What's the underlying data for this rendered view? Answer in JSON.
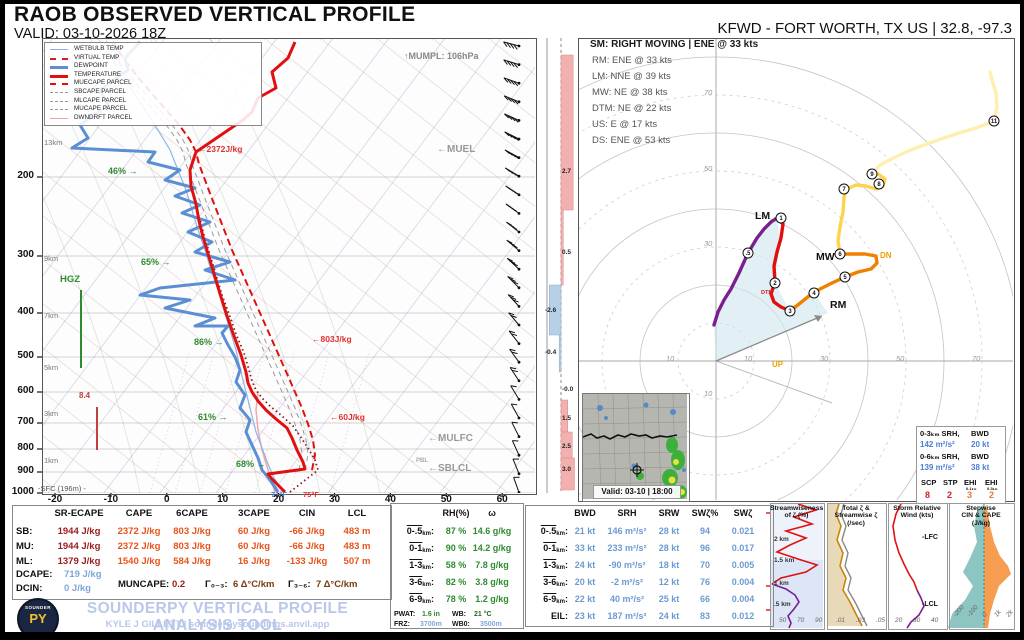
{
  "header": {
    "title": "RAOB OBSERVED VERTICAL PROFILE",
    "valid": "VALID: 03-10-2026 18Z",
    "station": "KFWD - FORT WORTH, TX US | 32.8, -97.3"
  },
  "skewt": {
    "legend": [
      "WETBULB TEMP",
      "VIRTUAL TEMP",
      "DEWPOINT",
      "TEMPERATURE",
      "MUECAPE PARCEL",
      "SBCAPE PARCEL",
      "MLCAPE PARCEL",
      "MUCAPE PARCEL",
      "DWNDRFT PARCEL"
    ],
    "pressure_ticks": [
      "200",
      "300",
      "400",
      "500",
      "600",
      "700",
      "800",
      "900",
      "1000"
    ],
    "temp_ticks": [
      "-20",
      "-10",
      "0",
      "10",
      "20",
      "30",
      "40",
      "50",
      "60"
    ],
    "height_labels": [
      "13km",
      "9km",
      "7km",
      "5km",
      "3km",
      "1km"
    ],
    "sfc_label": "-SFC (196m) -",
    "annotations": {
      "mumpl": "↑MUMPL: 106hPa",
      "muel": "←MUEL",
      "mulfc": "←MULFC",
      "sblcl": "←SBLCL",
      "pbl": "←PBL",
      "hgz": "HGZ",
      "hail_size": "8.4",
      "cape_total": "←2372J/kg",
      "cape_6km": "←803J/kg",
      "cape_3km": "←60J/kg",
      "sfc_temp": "75°F",
      "sfc_dewpoint": "71°F",
      "rh_labels": [
        "46% →",
        "65% →",
        "86% →",
        "61% →",
        "68% →"
      ]
    }
  },
  "chart_data": {
    "type": "skewt-hodograph-sounding",
    "advection_c_per_hr": [
      "2.7",
      "0.5",
      "-2.6",
      "-0.4",
      "-0.0",
      "1.5",
      "2.5",
      "3.0"
    ],
    "storm_motion": {
      "headline": "SM: RIGHT MOVING | ENE @ 33 kts",
      "vectors": [
        "RM: ENE @ 33 kts",
        "LM: NNE @ 39 kts",
        "MW: NE @ 38 kts",
        "DTM: NE @ 22 kts",
        "US: E @ 17 kts",
        "DS: ENE @ 53 kts"
      ]
    },
    "hodograph_labels": {
      "lm": "LM",
      "mw": "MW",
      "rm": "RM",
      "dtm": "DTM",
      "up": "UP",
      "dn": "DN"
    },
    "hodograph_km_markers": [
      ".5",
      "1",
      "2",
      "3",
      "4",
      "5",
      "6",
      "7",
      "8",
      "9",
      "11"
    ],
    "hodograph_ring_labels": [
      "10",
      "30",
      "50",
      "70"
    ],
    "srh_box": {
      "row1_label": "0-3ₖₘ SRH,",
      "row1_label2": "BWD",
      "row1_val": "142 m²/s²",
      "row1_val2": "20 kt",
      "row2_label": "0-6ₖₘ SRH,",
      "row2_label2": "BWD",
      "row2_val": "139 m²/s²",
      "row2_val2": "38 kt",
      "idx_headers": [
        "SCP",
        "STP",
        "EHI",
        "EHI"
      ],
      "idx_subs": [
        "",
        "",
        "0-1ₖₘ",
        "0-3ₖₘ"
      ],
      "idx_values": [
        "8",
        "2",
        "3",
        "2"
      ]
    },
    "thermo": {
      "headers": [
        "SR-ECAPE",
        "CAPE",
        "6CAPE",
        "3CAPE",
        "CIN",
        "LCL"
      ],
      "rows": [
        {
          "label": "SB:",
          "values": [
            "1944 J/kg",
            "2372 J/kg",
            "803 J/kg",
            "60 J/kg",
            "-66 J/kg",
            "483 m"
          ]
        },
        {
          "label": "MU:",
          "values": [
            "1944 J/kg",
            "2372 J/kg",
            "803 J/kg",
            "60 J/kg",
            "-66 J/kg",
            "483 m"
          ]
        },
        {
          "label": "ML:",
          "values": [
            "1379 J/kg",
            "1540 J/kg",
            "584 J/kg",
            "16 J/kg",
            "-133 J/kg",
            "507 m"
          ]
        }
      ],
      "dcape_label": "DCAPE:",
      "dcape": "719 J/kg",
      "dcin_label": "DCIN:",
      "dcin": "0 J/kg",
      "muncape_label": "MUNCAPE:",
      "muncape": "0.2",
      "lr03_label": "Γ₀₋₃:",
      "lr03": "6 Δ°C/km",
      "lr36_label": "Γ₃₋₆:",
      "lr36": "7 Δ°C/km"
    },
    "moisture": {
      "headers": [
        "RH(%)",
        "ω"
      ],
      "rows": [
        {
          "range": "0-.5",
          "sub": "km",
          "rh": "87 %",
          "w": "14.6 g/kg"
        },
        {
          "range": "0-1",
          "sub": "km",
          "rh": "90 %",
          "w": "14.2 g/kg"
        },
        {
          "range": "1-3",
          "sub": "km",
          "rh": "58 %",
          "w": "7.8 g/kg"
        },
        {
          "range": "3-6",
          "sub": "km",
          "rh": "82 %",
          "w": "3.8 g/kg"
        },
        {
          "range": "6-9",
          "sub": "km",
          "rh": "78 %",
          "w": "1.2 g/kg"
        }
      ],
      "pwat_label": "PWAT:",
      "pwat": "1.6 in",
      "wb_label": "WB:",
      "wb": "21 °C",
      "frz_label": "FRZ:",
      "frz": "3700m",
      "wb0_label": "WB0:",
      "wb0": "3500m"
    },
    "kinematics": {
      "headers": [
        "BWD",
        "SRH",
        "SRW",
        "SWζ%",
        "SWζ"
      ],
      "rows": [
        {
          "range": "0-.5",
          "sub": "km",
          "values": [
            "21 kt",
            "146 m²/s²",
            "28 kt",
            "94",
            "0.021"
          ]
        },
        {
          "range": "0-1",
          "sub": "km",
          "values": [
            "33 kt",
            "233 m²/s²",
            "28 kt",
            "96",
            "0.017"
          ]
        },
        {
          "range": "1-3",
          "sub": "km",
          "values": [
            "24 kt",
            "-90 m²/s²",
            "18 kt",
            "70",
            "0.005"
          ]
        },
        {
          "range": "3-6",
          "sub": "km",
          "values": [
            "20 kt",
            "-2 m²/s²",
            "12 kt",
            "76",
            "0.004"
          ]
        },
        {
          "range": "6-9",
          "sub": "km",
          "values": [
            "22 kt",
            "40 m²/s²",
            "25 kt",
            "66",
            "0.004"
          ]
        },
        {
          "range": "EIL",
          "sub": "",
          "values": [
            "23 kt",
            "187 m²/s²",
            "24 kt",
            "83",
            "0.012"
          ]
        }
      ]
    },
    "panels": [
      {
        "title": "Streamwiseness\nof ζ (%)",
        "ticks": [
          "50",
          "70",
          "90"
        ],
        "ylabels": [
          "2 km",
          "1.5 km",
          "1 km",
          ".5 km"
        ]
      },
      {
        "title": "Total ζ &\nStreamwise ζ\n(/sec)",
        "ticks": [
          ".01",
          ".03",
          ".05"
        ],
        "ylabels": []
      },
      {
        "title": "Storm Relative\nWind (kts)",
        "ticks": [
          "20",
          "30",
          "40"
        ],
        "ylabels": [
          "-LFC",
          "-LCL"
        ]
      },
      {
        "title": "Stepwise\nCIN & CAPE\n(J/kg)",
        "ticks": [
          "-200",
          "-100",
          "0",
          "1k",
          "2k"
        ],
        "ylabels": []
      }
    ]
  },
  "radar": {
    "caption": "Valid: 03-10 | 18:00"
  },
  "footer": {
    "brand": "SOUNDERPY VERTICAL PROFILE ANALYSIS TOOL",
    "credit": "KYLE J GILLETT | sounderpysoundings.anvil.app",
    "logo_top": "SOUNDER",
    "logo_main": "PY"
  }
}
